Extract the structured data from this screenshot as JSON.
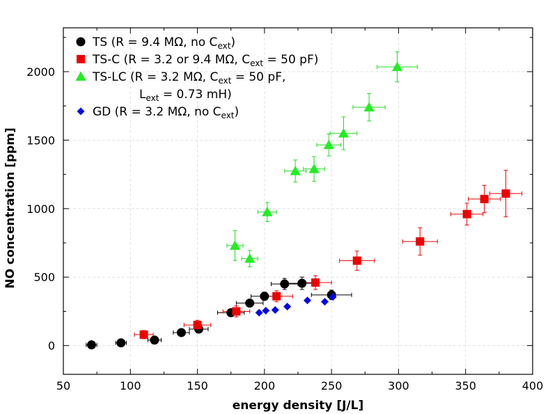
{
  "chart_data": {
    "type": "scatter",
    "xlabel": "energy density [J/L]",
    "ylabel": "NO concentration [ppm]",
    "xlim": [
      50,
      400
    ],
    "ylim": [
      -210,
      2320
    ],
    "x_ticks": [
      "50",
      "100",
      "150",
      "200",
      "250",
      "300",
      "350",
      "400"
    ],
    "y_ticks": [
      "0",
      "500",
      "1000",
      "1500",
      "2000"
    ],
    "grid": true,
    "legend_placement": "top-left",
    "series": [
      {
        "name": "TS (R = 9.4 MΩ, no C",
        "name_sub": "ext",
        "name_tail": ")",
        "marker": "circle",
        "color": "#000000",
        "errcolor": "#000000",
        "points": [
          {
            "x": 71,
            "y": 5,
            "ex": 4,
            "ey": 8
          },
          {
            "x": 93,
            "y": 20,
            "ex": 4,
            "ey": 8
          },
          {
            "x": 118,
            "y": 40,
            "ex": 5,
            "ey": 10
          },
          {
            "x": 138,
            "y": 95,
            "ex": 6,
            "ey": 15
          },
          {
            "x": 151,
            "y": 120,
            "ex": 7,
            "ey": 20
          },
          {
            "x": 175,
            "y": 240,
            "ex": 10,
            "ey": 20
          },
          {
            "x": 189,
            "y": 310,
            "ex": 10,
            "ey": 25
          },
          {
            "x": 200,
            "y": 360,
            "ex": 10,
            "ey": 30
          },
          {
            "x": 215,
            "y": 450,
            "ex": 10,
            "ey": 40
          },
          {
            "x": 228,
            "y": 455,
            "ex": 12,
            "ey": 45
          },
          {
            "x": 250,
            "y": 370,
            "ex": 15,
            "ey": 35
          }
        ]
      },
      {
        "name": "TS-C (R = 3.2 or 9.4 MΩ, C",
        "name_sub": "ext",
        "name_tail": " = 50 pF)",
        "marker": "square",
        "color": "#ee0000",
        "errcolor": "#ee0000",
        "points": [
          {
            "x": 110,
            "y": 80,
            "ex": 7,
            "ey": 30
          },
          {
            "x": 150,
            "y": 150,
            "ex": 10,
            "ey": 35
          },
          {
            "x": 179,
            "y": 250,
            "ex": 10,
            "ey": 40
          },
          {
            "x": 209,
            "y": 360,
            "ex": 12,
            "ey": 40
          },
          {
            "x": 238,
            "y": 460,
            "ex": 12,
            "ey": 50
          },
          {
            "x": 269,
            "y": 620,
            "ex": 13,
            "ey": 70
          },
          {
            "x": 316,
            "y": 760,
            "ex": 13,
            "ey": 100
          },
          {
            "x": 351,
            "y": 960,
            "ex": 12,
            "ey": 80
          },
          {
            "x": 364,
            "y": 1070,
            "ex": 12,
            "ey": 100
          },
          {
            "x": 380,
            "y": 1110,
            "ex": 12,
            "ey": 170
          }
        ]
      },
      {
        "name": "TS-LC (R = 3.2 MΩ, C",
        "name_sub": "ext",
        "name_tail": " = 50 pF,",
        "name_line2_pre": "L",
        "name_line2_sub": "ext",
        "name_line2_tail": " = 0.73 mH)",
        "marker": "triangle",
        "color": "#22ee22",
        "errcolor": "#22dd22",
        "points": [
          {
            "x": 178,
            "y": 730,
            "ex": 6,
            "ey": 110
          },
          {
            "x": 189,
            "y": 635,
            "ex": 6,
            "ey": 60
          },
          {
            "x": 202,
            "y": 975,
            "ex": 7,
            "ey": 70
          },
          {
            "x": 223,
            "y": 1275,
            "ex": 8,
            "ey": 80
          },
          {
            "x": 237,
            "y": 1290,
            "ex": 8,
            "ey": 90
          },
          {
            "x": 248,
            "y": 1465,
            "ex": 9,
            "ey": 80
          },
          {
            "x": 259,
            "y": 1550,
            "ex": 10,
            "ey": 120
          },
          {
            "x": 278,
            "y": 1740,
            "ex": 12,
            "ey": 100
          },
          {
            "x": 299,
            "y": 2035,
            "ex": 15,
            "ey": 110
          }
        ]
      },
      {
        "name": "GD (R = 3.2 MΩ, no C",
        "name_sub": "ext",
        "name_tail": ")",
        "marker": "diamond",
        "color": "#0000ee",
        "errcolor": "#0000ee",
        "points": [
          {
            "x": 196,
            "y": 240,
            "ex": 0,
            "ey": 0
          },
          {
            "x": 201,
            "y": 255,
            "ex": 0,
            "ey": 0
          },
          {
            "x": 208,
            "y": 260,
            "ex": 0,
            "ey": 0
          },
          {
            "x": 217,
            "y": 285,
            "ex": 0,
            "ey": 0
          },
          {
            "x": 232,
            "y": 330,
            "ex": 0,
            "ey": 0
          },
          {
            "x": 245,
            "y": 320,
            "ex": 0,
            "ey": 0
          },
          {
            "x": 251,
            "y": 355,
            "ex": 0,
            "ey": 0
          }
        ]
      }
    ]
  }
}
